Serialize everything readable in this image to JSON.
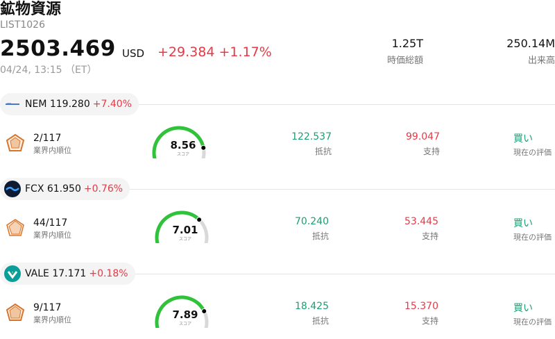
{
  "header": {
    "title": "鉱物資源",
    "code": "LIST1026",
    "price": "2503.469",
    "currency": "USD",
    "change": "+29.384 +1.17%",
    "time": "04/24, 13:15 （ET）",
    "market_cap_value": "1.25T",
    "market_cap_label": "時価総額",
    "volume_value": "250.14M",
    "volume_label": "出来高"
  },
  "colors": {
    "up": "#e63946",
    "resist": "#1a9e74",
    "gauge_green": "#2fc23a",
    "gauge_track": "#d9d9d9"
  },
  "stocks": [
    {
      "ticker_price": "NEM 119.280",
      "pct": "+7.40%",
      "logo": "newmont-logo",
      "rank": "2/117",
      "rank_label": "業界内順位",
      "score": "8.56",
      "score_value": 8.56,
      "score_label": "スコア",
      "resist": "122.537",
      "resist_label": "抵抗",
      "support": "99.047",
      "support_label": "支持",
      "rating": "買い",
      "rating_label": "現在の評価"
    },
    {
      "ticker_price": "FCX 61.950",
      "pct": "+0.76%",
      "logo": "freeport-logo",
      "rank": "44/117",
      "rank_label": "業界内順位",
      "score": "7.01",
      "score_value": 7.01,
      "score_label": "スコア",
      "resist": "70.240",
      "resist_label": "抵抗",
      "support": "53.445",
      "support_label": "支持",
      "rating": "買い",
      "rating_label": "現在の評価"
    },
    {
      "ticker_price": "VALE 17.171",
      "pct": "+0.18%",
      "logo": "vale-logo",
      "rank": "9/117",
      "rank_label": "業界内順位",
      "score": "7.89",
      "score_value": 7.89,
      "score_label": "スコア",
      "resist": "18.425",
      "resist_label": "抵抗",
      "support": "15.370",
      "support_label": "支持",
      "rating": "買い",
      "rating_label": "現在の評価"
    }
  ]
}
